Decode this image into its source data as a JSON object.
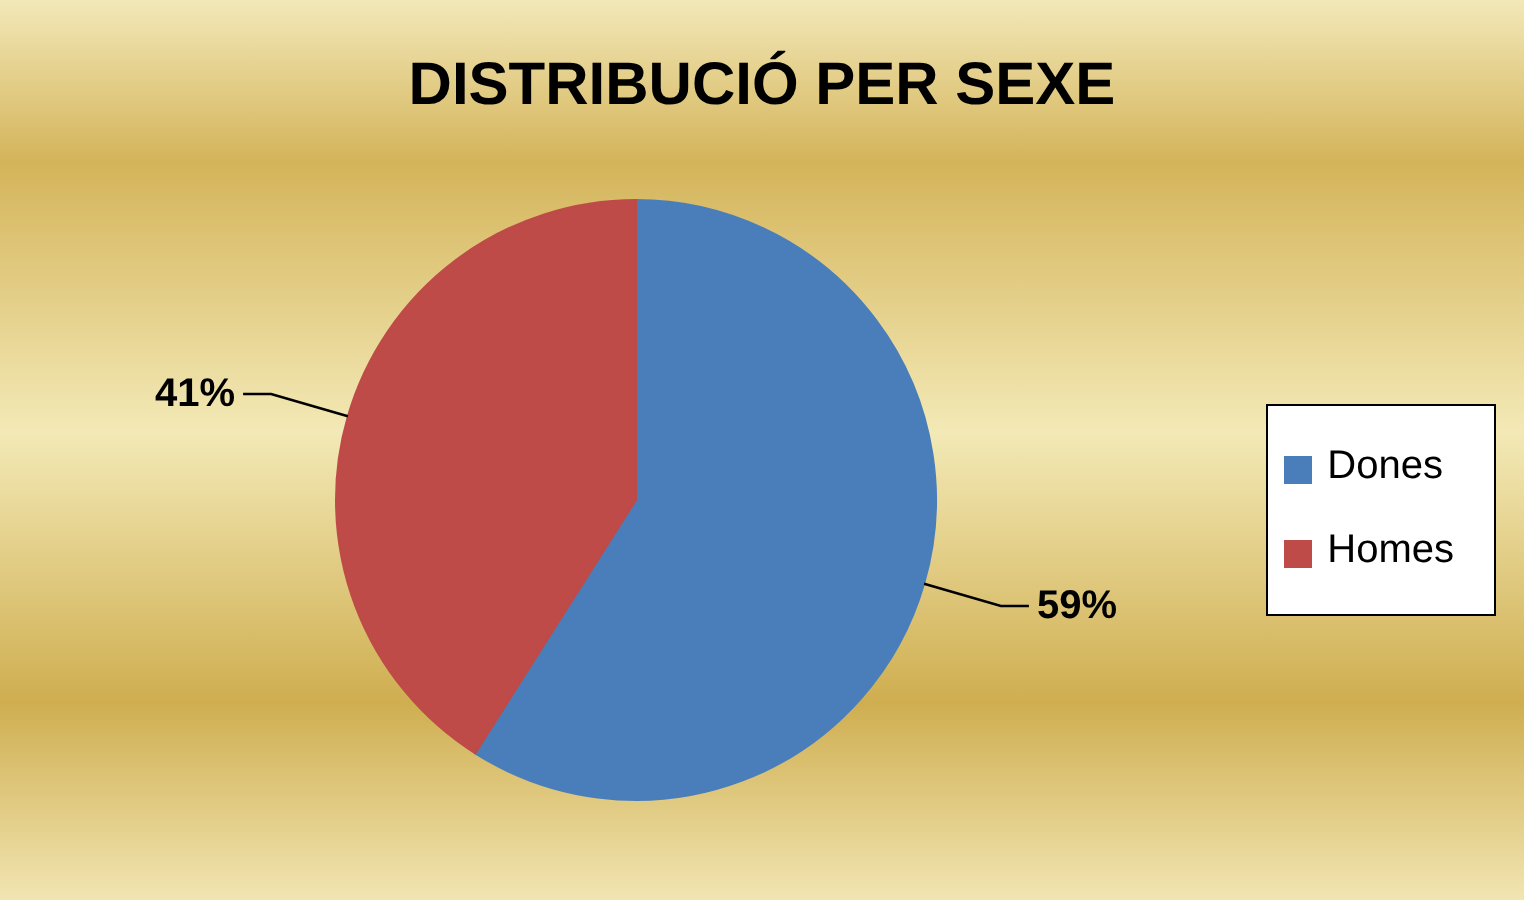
{
  "chart_data": {
    "type": "pie",
    "title": "DISTRIBUCIÓ PER SEXE",
    "categories": [
      "Dones",
      "Homes"
    ],
    "values": [
      59,
      41
    ],
    "colors": [
      "#4a7ebb",
      "#be4b48"
    ],
    "value_labels": [
      "59%",
      "41%"
    ],
    "legend": "right"
  }
}
